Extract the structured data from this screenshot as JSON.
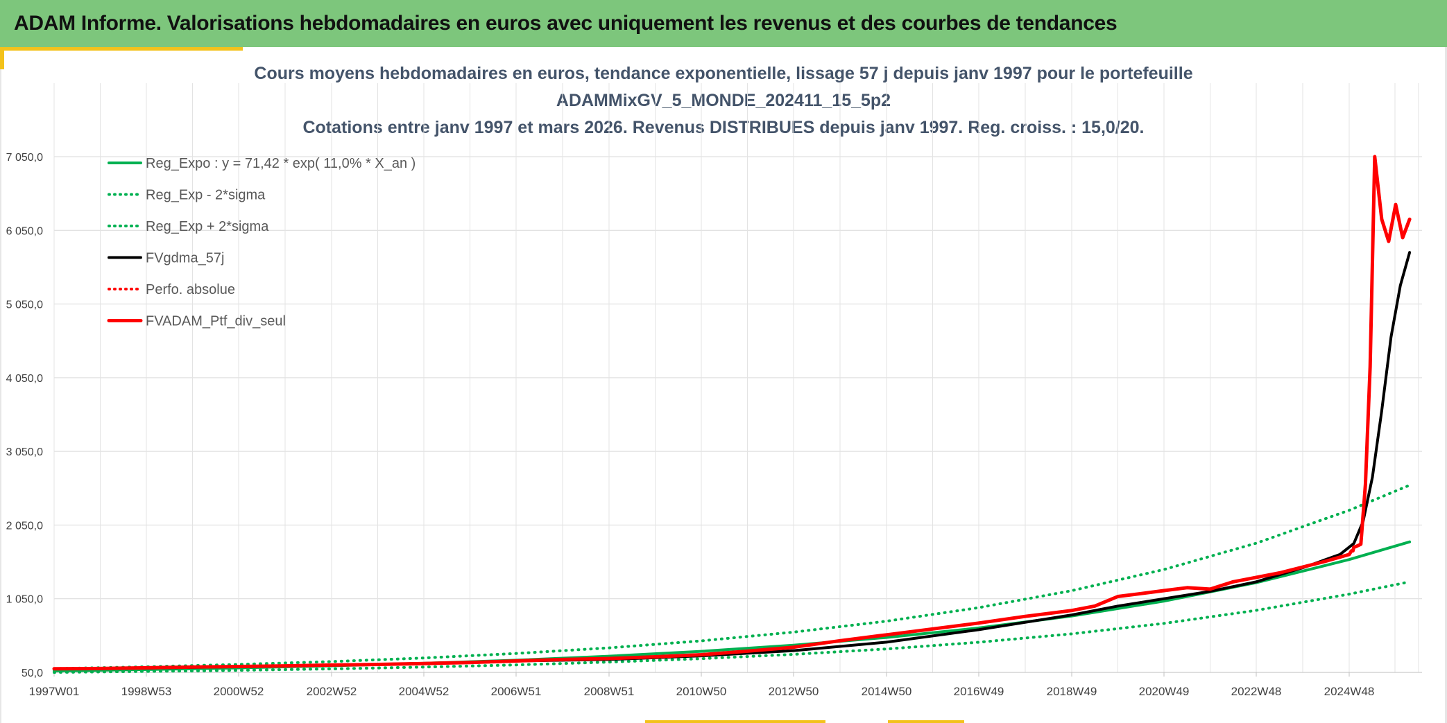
{
  "header": {
    "title": "ADAM Informe. Valorisations hebdomadaires en euros avec uniquement les revenus et des courbes de tendances"
  },
  "colors": {
    "header_bg": "#7dc67c",
    "accent": "#f3c21b",
    "title_text": "#44546a",
    "reg_expo": "#00b050",
    "fvgdma": "#000000",
    "fvadam": "#ff0000"
  },
  "chart_data": {
    "type": "line",
    "title_lines": [
      "Cours moyens hebdomadaires en euros, tendance exponentielle, lissage 57 j depuis janv 1997 pour le portefeuille",
      "ADAMMixGV_5_MONDE_202411_15_5p2",
      "Cotations entre janv 1997 et mars 2026. Revenus DISTRIBUES depuis janv 1997. Reg. croiss. : 15,0/20."
    ],
    "xlabel": "",
    "ylabel": "",
    "x_tick_labels": [
      "1997W01",
      "1998W53",
      "2000W52",
      "2002W52",
      "2004W52",
      "2006W51",
      "2008W51",
      "2010W50",
      "2012W50",
      "2014W50",
      "2016W49",
      "2018W49",
      "2020W49",
      "2022W48",
      "2024W48"
    ],
    "x_tick_years": [
      1997.0,
      1999.0,
      2001.0,
      2003.0,
      2005.0,
      2007.0,
      2009.0,
      2011.0,
      2013.0,
      2015.0,
      2017.0,
      2019.0,
      2021.0,
      2023.0,
      2025.0
    ],
    "xlim": [
      1997.0,
      2026.25
    ],
    "y_tick_labels": [
      "50,0",
      "1 050,0",
      "2 050,0",
      "3 050,0",
      "4 050,0",
      "5 050,0",
      "6 050,0",
      "7 050,0"
    ],
    "y_ticks": [
      50,
      1050,
      2050,
      3050,
      4050,
      5050,
      6050,
      7050
    ],
    "ylim": [
      50,
      7800
    ],
    "grid": true,
    "legend_position": "top-left",
    "series": [
      {
        "name": "Reg_Expo : y = 71,42 * exp( 11,0% *  X_an )",
        "color": "#00b050",
        "dash": "solid",
        "x": [
          1997,
          1999,
          2001,
          2003,
          2005,
          2007,
          2009,
          2011,
          2013,
          2015,
          2017,
          2019,
          2021,
          2023,
          2025,
          2026.3
        ],
        "y": [
          71,
          89,
          111,
          139,
          173,
          216,
          270,
          336,
          420,
          524,
          653,
          815,
          1017,
          1268,
          1582,
          1822
        ]
      },
      {
        "name": "Reg_Exp - 2*sigma",
        "color": "#00b050",
        "dash": "dotted",
        "x": [
          1997,
          1999,
          2001,
          2003,
          2005,
          2007,
          2009,
          2011,
          2013,
          2015,
          2017,
          2019,
          2021,
          2023,
          2025,
          2026.3
        ],
        "y": [
          50,
          63,
          78,
          98,
          122,
          152,
          190,
          236,
          295,
          368,
          459,
          573,
          715,
          892,
          1112,
          1280
        ]
      },
      {
        "name": "Reg_Exp + 2*sigma",
        "color": "#00b050",
        "dash": "dotted",
        "x": [
          1997,
          1999,
          2001,
          2003,
          2005,
          2007,
          2009,
          2011,
          2013,
          2015,
          2017,
          2019,
          2021,
          2023,
          2025,
          2026.3
        ],
        "y": [
          101,
          126,
          158,
          197,
          246,
          307,
          383,
          478,
          597,
          745,
          929,
          1159,
          1446,
          1804,
          2251,
          2590
        ]
      },
      {
        "name": "FVgdma_57j",
        "color": "#000000",
        "dash": "solid",
        "x": [
          1997,
          1999,
          2001,
          2003,
          2005,
          2007,
          2009,
          2011,
          2013,
          2015,
          2017,
          2019,
          2020,
          2021,
          2022,
          2023,
          2024,
          2024.8,
          2025.1,
          2025.3,
          2025.5,
          2025.7,
          2025.9,
          2026.1,
          2026.3
        ],
        "y": [
          100,
          108,
          128,
          148,
          172,
          205,
          225,
          275,
          345,
          460,
          630,
          830,
          950,
          1050,
          1150,
          1280,
          1470,
          1650,
          1800,
          2100,
          2700,
          3600,
          4600,
          5300,
          5750
        ]
      },
      {
        "name": "Perfo. absolue",
        "color": "#ff0000",
        "dash": "dotted",
        "x": [],
        "y": []
      },
      {
        "name": "FVADAM_Ptf_div_seul",
        "color": "#ff0000",
        "dash": "solid",
        "x": [
          1997,
          1998,
          1999,
          2000,
          2001,
          2002,
          2003,
          2004,
          2005,
          2006,
          2007,
          2008,
          2009,
          2010,
          2011,
          2012,
          2013,
          2014,
          2015,
          2016,
          2017,
          2018,
          2019,
          2019.5,
          2020,
          2020.5,
          2021,
          2021.5,
          2022,
          2022.5,
          2023,
          2023.5,
          2024,
          2024.5,
          2025,
          2025.05,
          2025.08,
          2025.1,
          2025.15,
          2025.25,
          2025.35,
          2025.45,
          2025.55,
          2025.7,
          2025.85,
          2026.0,
          2026.15,
          2026.3
        ],
        "y": [
          100,
          103,
          112,
          122,
          130,
          138,
          150,
          158,
          170,
          185,
          205,
          225,
          238,
          262,
          290,
          338,
          392,
          480,
          560,
          640,
          720,
          810,
          890,
          950,
          1080,
          1120,
          1160,
          1200,
          1180,
          1280,
          1340,
          1400,
          1480,
          1560,
          1650,
          1700,
          1700,
          1750,
          1760,
          1790,
          2600,
          4200,
          7050,
          6200,
          5900,
          6400,
          5950,
          6200
        ]
      }
    ]
  }
}
